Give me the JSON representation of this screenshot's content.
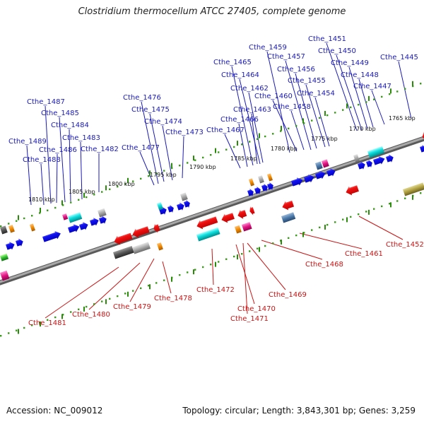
{
  "title": "Clostridium thermocellum ATCC 27405, complete genome",
  "footer": {
    "accession_label": "Accession:",
    "accession": "NC_009012",
    "topology_label": "Topology:",
    "topology": "circular",
    "length_label": "Length:",
    "length": "3,843,301 bp",
    "genes_label": "Genes:",
    "genes": "3,259"
  },
  "colors": {
    "forward_label": "#1a1ab4",
    "reverse_label": "#c81414",
    "forward_gene": "#0a0af0",
    "reverse_gene": "#f00a0a",
    "backbone": "#8a8a8a",
    "tick": "#3a9a1a"
  },
  "kbp_labels": [
    "1810 kbp",
    "1805 kbp",
    "1800 kbp",
    "1795 kbp",
    "1790 kbp",
    "1785 kbp",
    "1780 kbp",
    "1775 kbp",
    "1770 kbp",
    "1765 kbp"
  ],
  "forward_labels": [
    "Cthe_1489",
    "Cthe_1488",
    "Cthe_1487",
    "Cthe_1486",
    "Cthe_1485",
    "Cthe_1484",
    "Cthe_1483",
    "Cthe_1482",
    "Cthe_1477",
    "Cthe_1476",
    "Cthe_1475",
    "Cthe_1474",
    "Cthe_1473",
    "Cthe_1467",
    "Cthe_1466",
    "Cthe_1465",
    "Cthe_1464",
    "Cthe_1463",
    "Cthe_1462",
    "Cthe_1460",
    "Cthe_1459",
    "Cthe_1458",
    "Cthe_1457",
    "Cthe_1456",
    "Cthe_1455",
    "Cthe_1454",
    "Cthe_1451",
    "Cthe_1450",
    "Cthe_1449",
    "Cthe_1448",
    "Cthe_1447",
    "Cthe_1445"
  ],
  "reverse_labels": [
    "Cthe_1481",
    "Cthe_1480",
    "Cthe_1479",
    "Cthe_1478",
    "Cthe_1472",
    "Cthe_1470",
    "Cthe_1471",
    "Cthe_1469",
    "Cthe_1468",
    "Cthe_1461",
    "Cthe_1452"
  ]
}
